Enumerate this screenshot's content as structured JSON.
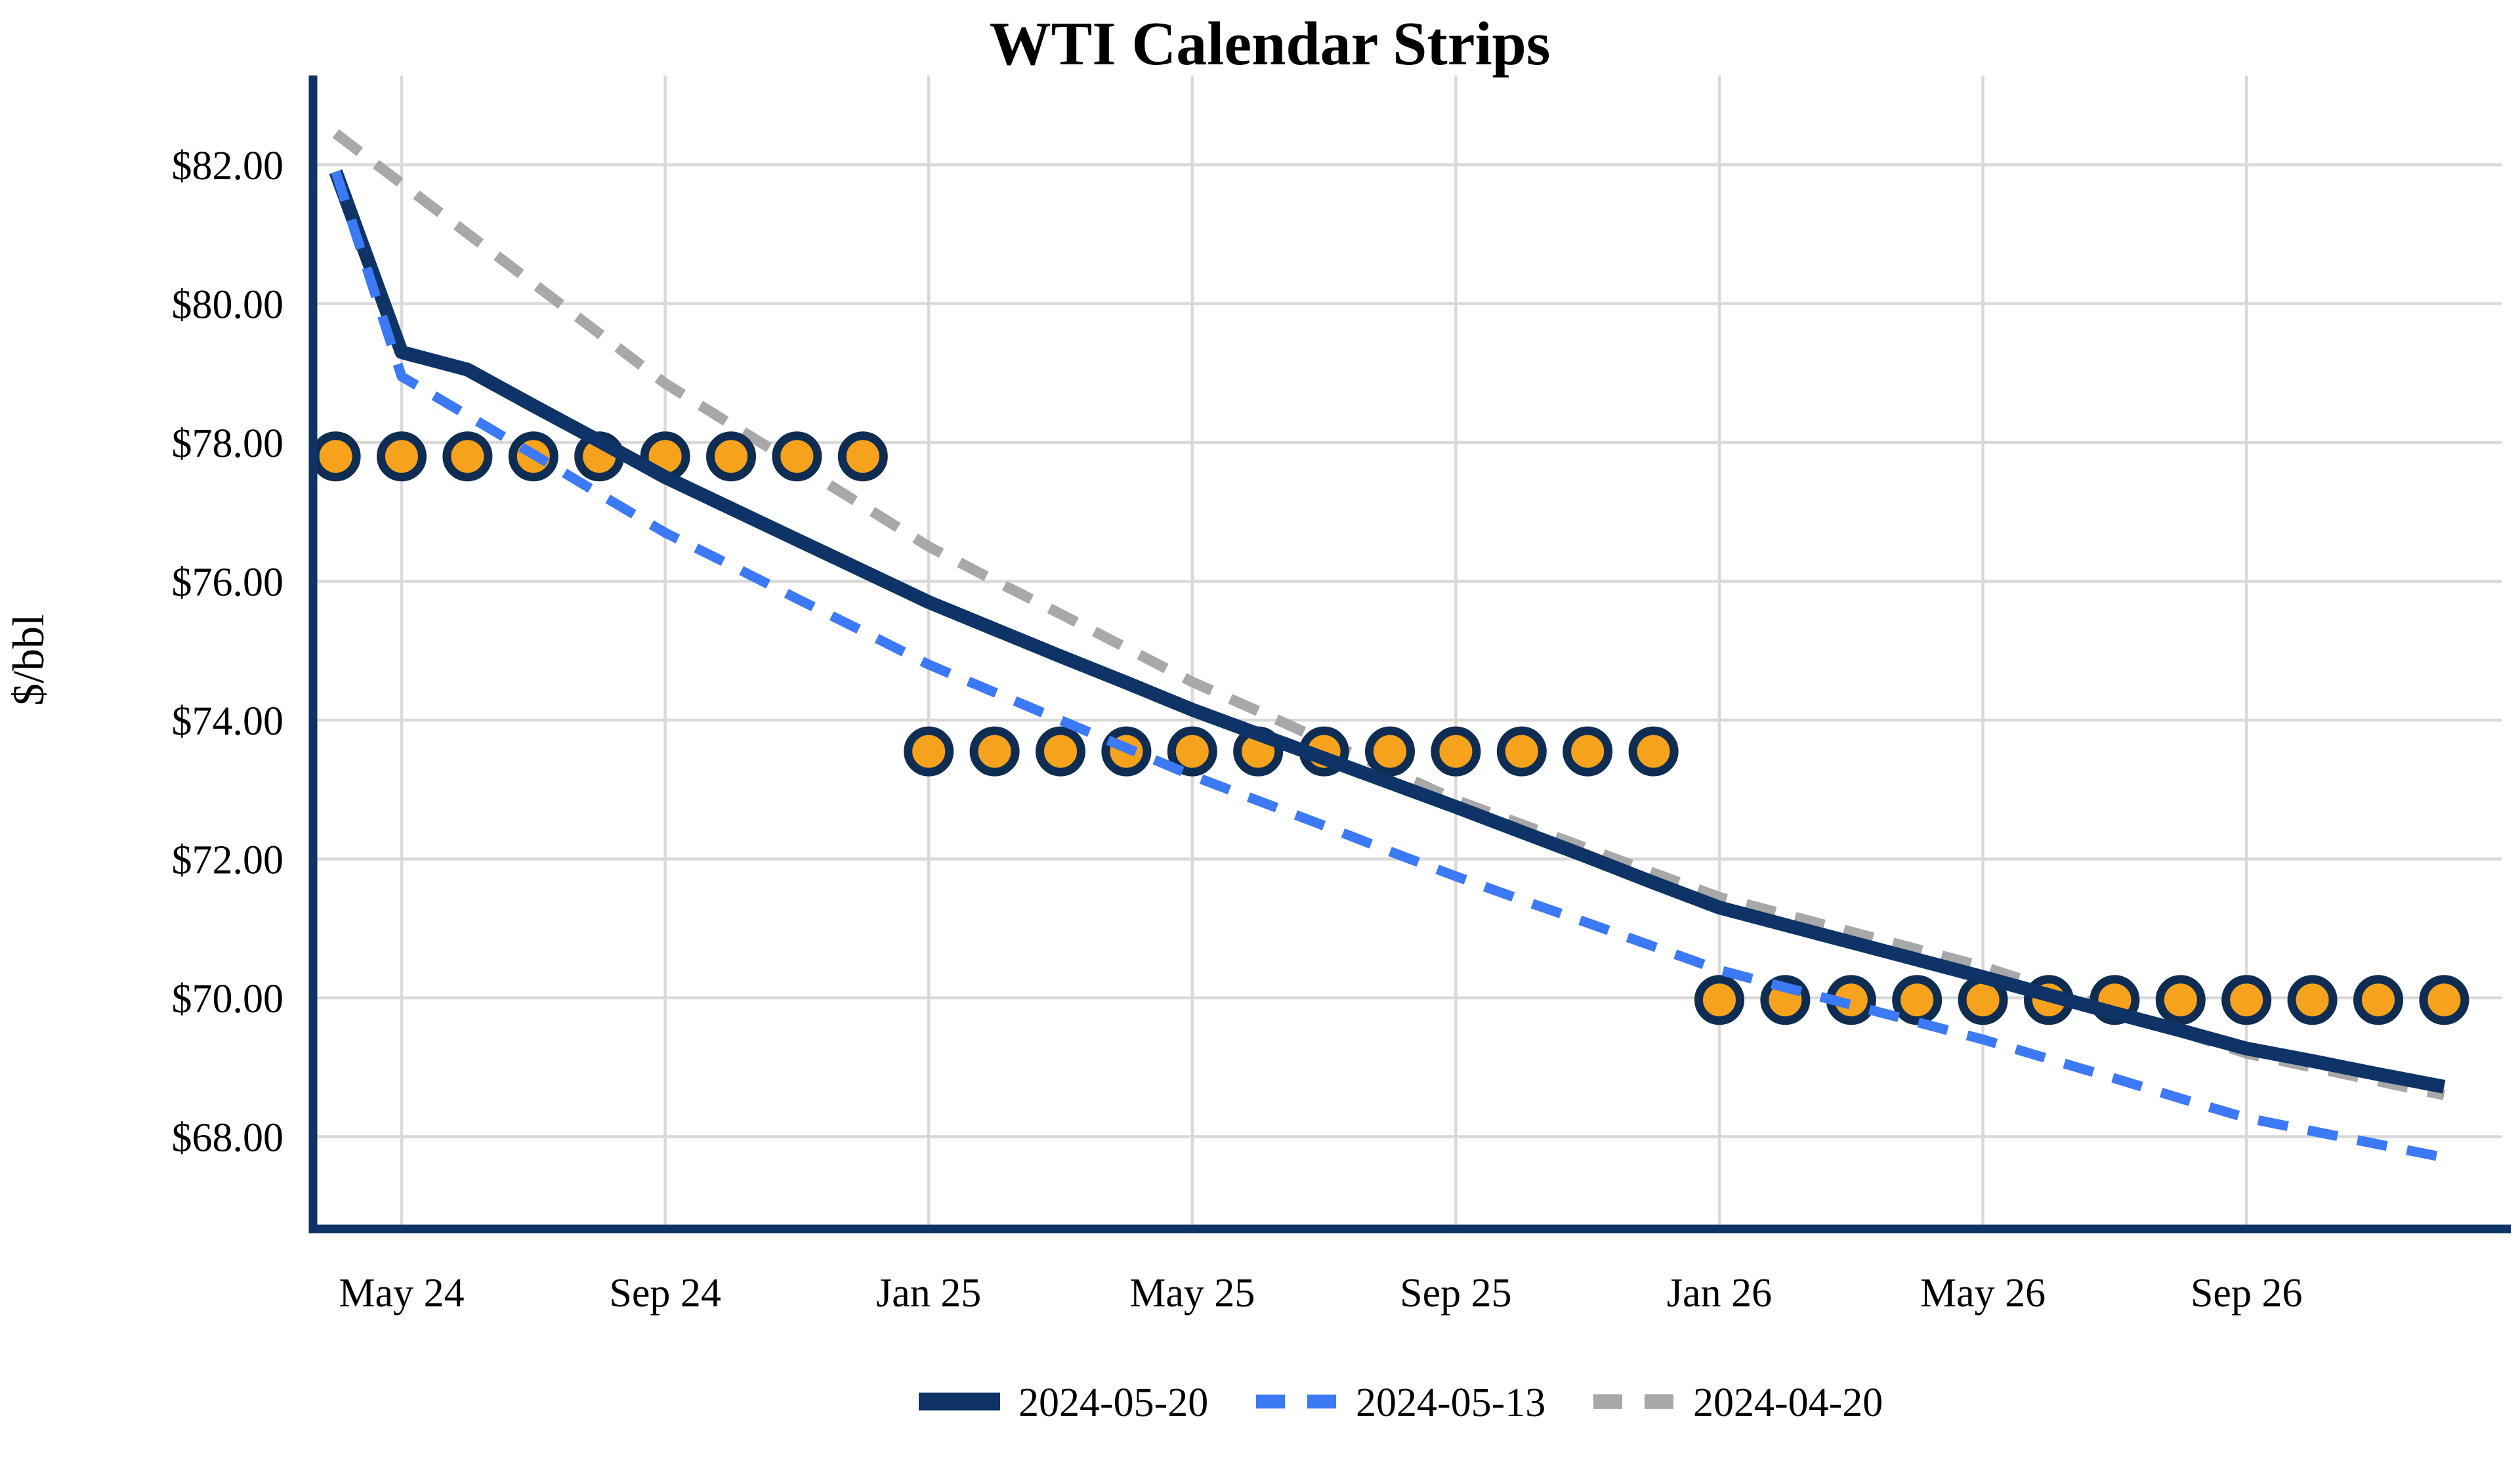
{
  "page": {
    "background": "#ffffff",
    "text_color": "#000000",
    "gridline_color": "#d9d9d9",
    "axis_color": "#0e3366"
  },
  "chart_data": {
    "type": "line",
    "title": "WTI Calendar Strips",
    "ylabel": "$/bbl",
    "xlabel": "",
    "grid": true,
    "legend_position": "bottom",
    "ylim": [
      66.7,
      83.3
    ],
    "x": [
      "Apr 24",
      "May 24",
      "Jun 24",
      "Jul 24",
      "Aug 24",
      "Sep 24",
      "Oct 24",
      "Nov 24",
      "Dec 24",
      "Jan 25",
      "Feb 25",
      "Mar 25",
      "Apr 25",
      "May 25",
      "Jun 25",
      "Jul 25",
      "Aug 25",
      "Sep 25",
      "Oct 25",
      "Nov 25",
      "Dec 25",
      "Jan 26",
      "Feb 26",
      "Mar 26",
      "Apr 26",
      "May 26",
      "Jun 26",
      "Jul 26",
      "Aug 26",
      "Sep 26",
      "Oct 26",
      "Nov 26",
      "Dec 26"
    ],
    "x_ticks": [
      {
        "label": "May 24"
      },
      {
        "label": "Sep 24"
      },
      {
        "label": "Jan 25"
      },
      {
        "label": "May 25"
      },
      {
        "label": "Sep 25"
      },
      {
        "label": "Jan 26"
      },
      {
        "label": "May 26"
      },
      {
        "label": "Sep 26"
      }
    ],
    "y_ticks": [
      {
        "label": "$82.00",
        "value": 82
      },
      {
        "label": "$80.00",
        "value": 80
      },
      {
        "label": "$78.00",
        "value": 78
      },
      {
        "label": "$76.00",
        "value": 76
      },
      {
        "label": "$74.00",
        "value": 74
      },
      {
        "label": "$72.00",
        "value": 72
      },
      {
        "label": "$70.00",
        "value": 70
      },
      {
        "label": "$68.00",
        "value": 68
      }
    ],
    "series": [
      {
        "name": "2024-05-20",
        "color": "#0e3366",
        "style": "solid",
        "width": 21,
        "values": [
          81.9,
          79.3,
          79.05,
          78.53,
          78.02,
          77.5,
          77.05,
          76.6,
          76.15,
          75.7,
          75.31,
          74.92,
          74.54,
          74.15,
          73.8,
          73.45,
          73.1,
          72.75,
          72.39,
          72.03,
          71.66,
          71.3,
          71.05,
          70.8,
          70.55,
          70.3,
          70.04,
          69.78,
          69.53,
          69.27,
          69.09,
          68.9,
          68.72
        ]
      },
      {
        "name": "2024-05-13",
        "color": "#3c79f5",
        "style": "dashed",
        "width": 15,
        "values": [
          81.9,
          78.95,
          78.39,
          77.83,
          77.26,
          76.7,
          76.23,
          75.75,
          75.28,
          74.8,
          74.4,
          74.0,
          73.6,
          73.2,
          72.84,
          72.48,
          72.11,
          71.75,
          71.41,
          71.08,
          70.74,
          70.4,
          70.15,
          69.9,
          69.65,
          69.4,
          69.12,
          68.84,
          68.55,
          68.27,
          68.08,
          67.89,
          67.7
        ]
      },
      {
        "name": "2024-04-20",
        "color": "#a8a8a8",
        "style": "dashed",
        "width": 16,
        "values": [
          82.45,
          81.73,
          81.01,
          80.29,
          79.57,
          78.85,
          78.26,
          77.68,
          77.09,
          76.5,
          76.01,
          75.53,
          75.04,
          74.55,
          74.13,
          73.7,
          73.28,
          72.85,
          72.5,
          72.15,
          71.8,
          71.45,
          71.2,
          70.95,
          70.7,
          70.45,
          70.14,
          69.83,
          69.51,
          69.2,
          69.0,
          68.8,
          68.6
        ]
      }
    ],
    "markers": {
      "shape": "circle",
      "fill_color": "#f7a21c",
      "edge_color": "#0f2d52",
      "groups": [
        {
          "from": "Apr 24",
          "to": "Dec 24",
          "value": 77.8
        },
        {
          "from": "Jan 25",
          "to": "Dec 25",
          "value": 73.55
        },
        {
          "from": "Jan 26",
          "to": "Dec 26",
          "value": 69.97
        }
      ]
    }
  }
}
